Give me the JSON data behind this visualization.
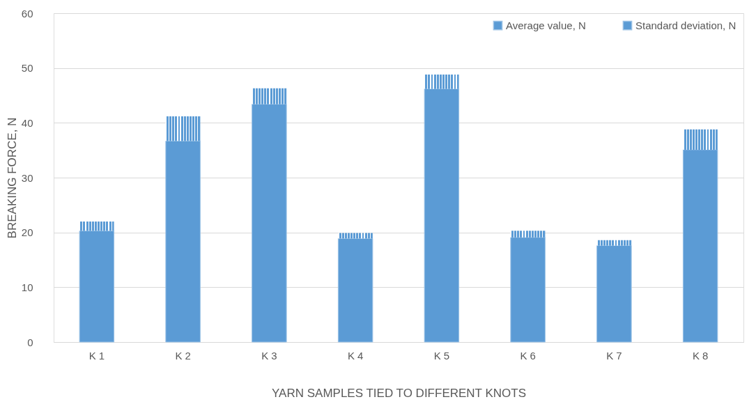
{
  "chart_data": {
    "type": "bar",
    "stacked": true,
    "xlabel": "YARN SAMPLES TIED TO DIFFERENT KNOTS",
    "ylabel": "BREAKING FORCE, N",
    "categories": [
      "K 1",
      "K 2",
      "K 3",
      "K 4",
      "K 5",
      "K 6",
      "K 7",
      "K 8"
    ],
    "series": [
      {
        "name": "Average value, N",
        "color": "#5b9bd5",
        "values": [
          20.3,
          36.7,
          43.4,
          18.9,
          46.2,
          19.1,
          17.6,
          35.1
        ]
      },
      {
        "name": "Standard deviation, N",
        "color": "#5b9bd5",
        "values": [
          1.7,
          4.5,
          2.9,
          1.0,
          2.6,
          1.2,
          1.0,
          3.7
        ]
      }
    ],
    "ylim": [
      0,
      60
    ],
    "yticks": [
      0,
      10,
      20,
      30,
      40,
      50,
      60
    ],
    "grid": "y",
    "legend": "top right"
  }
}
